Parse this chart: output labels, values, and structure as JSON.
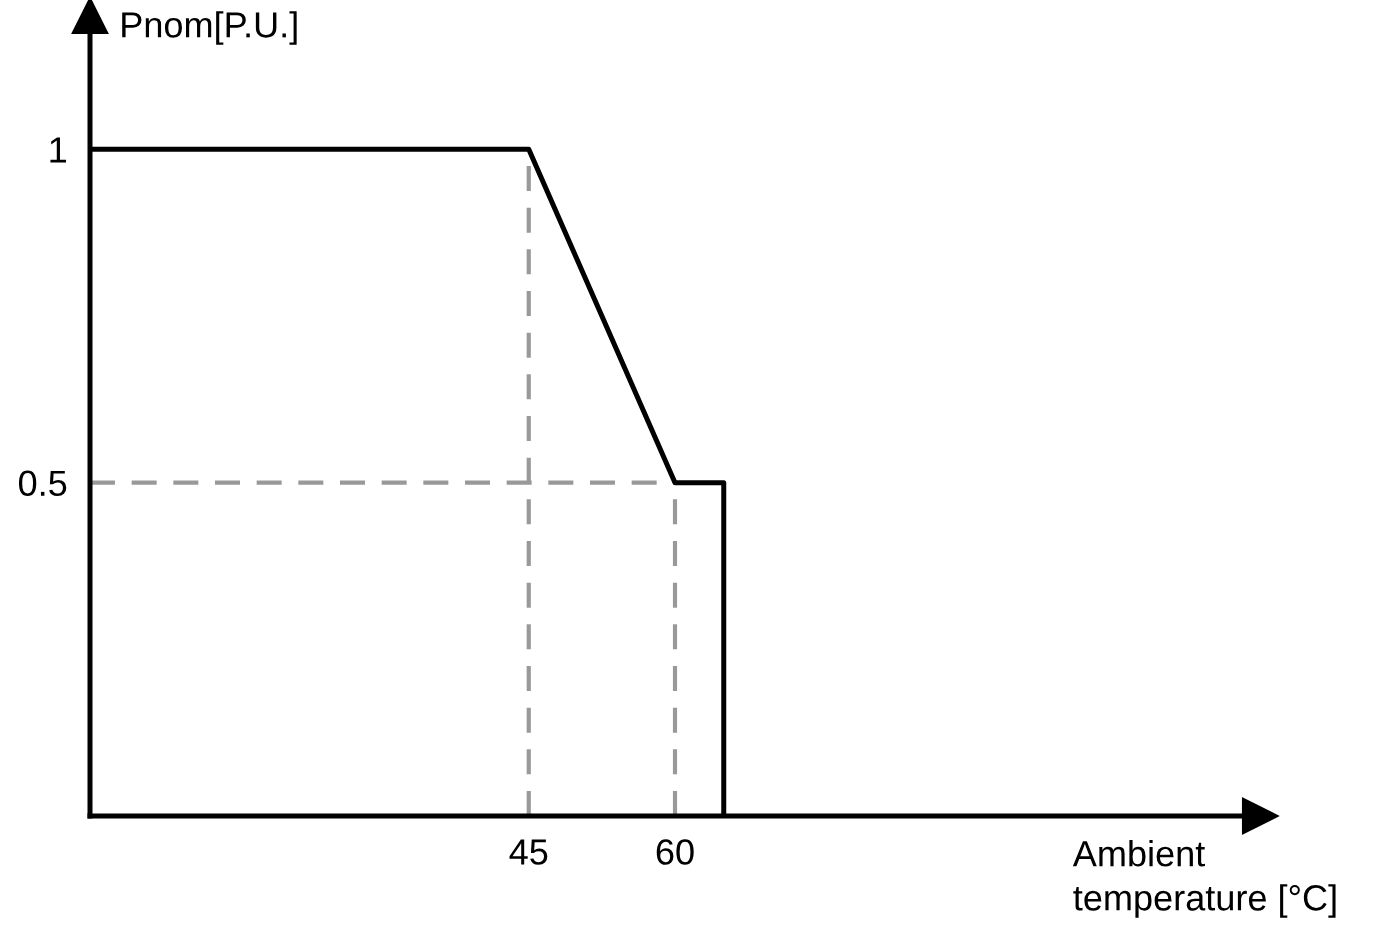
{
  "chart_data": {
    "type": "line",
    "xlabel": "Ambient\ntemperature [°C]",
    "ylabel": "Pnom[P.U.]",
    "xlim": [
      0,
      120
    ],
    "ylim": [
      0,
      1.2
    ],
    "xticks": [
      45,
      60
    ],
    "yticks": [
      0.5,
      1
    ],
    "grid": false,
    "legend": false,
    "marker": "none",
    "series": [
      {
        "color": "#000000",
        "x": [
          0,
          45,
          60,
          65,
          65
        ],
        "values": [
          1,
          1,
          0.5,
          0.5,
          0
        ],
        "line_style": "solid"
      },
      {
        "color": "#999999",
        "x": [
          45,
          45
        ],
        "values": [
          0,
          1
        ],
        "line_style": "dashed"
      },
      {
        "color": "#999999",
        "x": [
          60,
          60
        ],
        "values": [
          0,
          0.5
        ],
        "line_style": "dashed"
      },
      {
        "color": "#999999",
        "x": [
          0,
          60
        ],
        "values": [
          0.5,
          0.5
        ],
        "line_style": "dashed"
      }
    ]
  }
}
